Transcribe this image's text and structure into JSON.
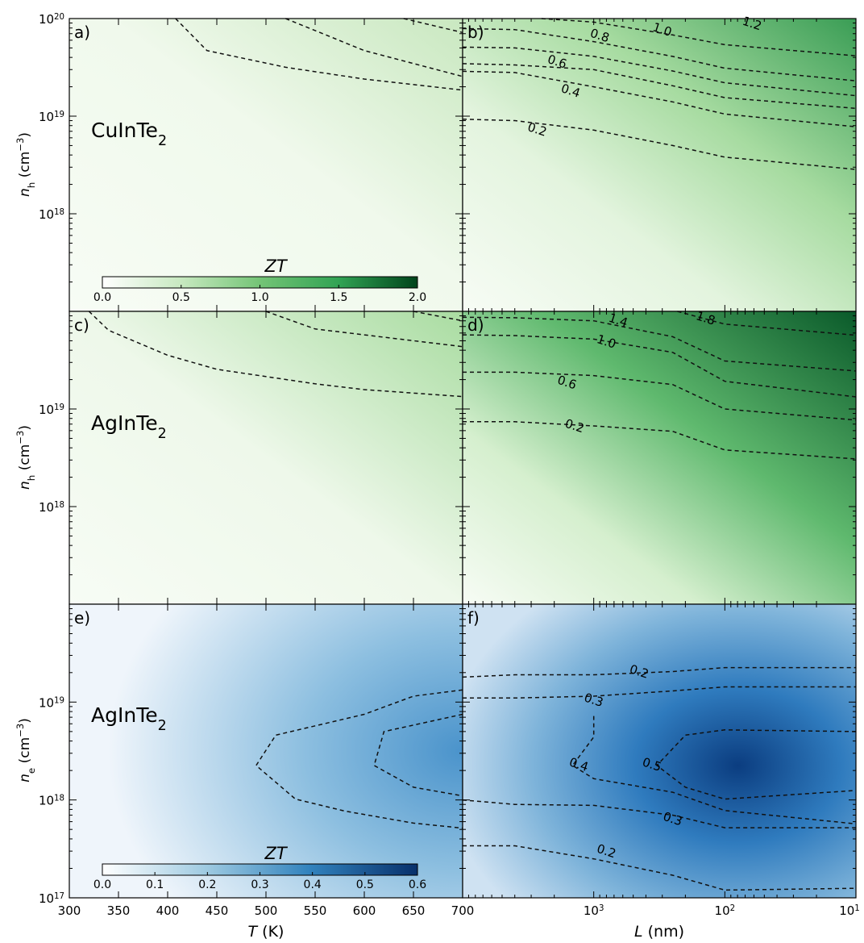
{
  "chart_data": [
    {
      "panel": "a)",
      "material": "CuInTe",
      "material_sub": "2",
      "type": "heatmap",
      "cmap": "green",
      "x_axis": "T",
      "y_axis": "n_h",
      "contours": [
        {
          "points": [
            [
              408,
              1e+20
            ],
            [
              440,
              4.7e+19
            ],
            [
              520,
              3.17e+19
            ],
            [
              600,
              2.4e+19
            ],
            [
              700,
              1.85e+19
            ]
          ]
        },
        {
          "points": [
            [
              520,
              1e+20
            ],
            [
              600,
              4.7e+19
            ],
            [
              700,
              2.55e+19
            ]
          ]
        },
        {
          "points": [
            [
              640,
              1e+20
            ],
            [
              700,
              7.2e+19
            ]
          ]
        }
      ]
    },
    {
      "panel": "b)",
      "type": "heatmap",
      "cmap": "green",
      "x_axis": "L",
      "y_axis": "n_h",
      "contours": [
        {
          "label": "0.2",
          "label_at": [
            2700,
            7.3e+18
          ],
          "points": [
            [
              10000,
              9.3e+18
            ],
            [
              4000,
              9e+18
            ],
            [
              1000,
              7.2e+18
            ],
            [
              250,
              5e+18
            ],
            [
              100,
              3.8e+18
            ],
            [
              10,
              2.85e+18
            ]
          ]
        },
        {
          "label": "0.4",
          "label_at": [
            1500,
            1.82e+19
          ],
          "points": [
            [
              10000,
              2.88e+19
            ],
            [
              4000,
              2.8e+19
            ],
            [
              1000,
              2e+19
            ],
            [
              250,
              1.4e+19
            ],
            [
              100,
              1.05e+19
            ],
            [
              10,
              7.8e+18
            ]
          ]
        },
        {
          "label": "0.6",
          "label_at": [
            1900,
            3.62e+19
          ],
          "points": [
            [
              10000,
              3.45e+19
            ],
            [
              4000,
              3.35e+19
            ],
            [
              1000,
              3e+19
            ],
            [
              250,
              2.05e+19
            ],
            [
              100,
              1.55e+19
            ],
            [
              10,
              1.2e+19
            ]
          ]
        },
        {
          "label": "0.8",
          "label_at": [
            900,
            6.7e+19
          ],
          "points": [
            [
              10000,
              5.1e+19
            ],
            [
              4000,
              5e+19
            ],
            [
              1000,
              4.1e+19
            ],
            [
              250,
              2.9e+19
            ],
            [
              100,
              2.2e+19
            ],
            [
              10,
              1.62e+19
            ]
          ]
        },
        {
          "label": "1.0",
          "label_at": [
            300,
            7.7e+19
          ],
          "points": [
            [
              10000,
              7.9e+19
            ],
            [
              4000,
              7.7e+19
            ],
            [
              1000,
              5.8e+19
            ],
            [
              250,
              4.1e+19
            ],
            [
              100,
              3.1e+19
            ],
            [
              10,
              2.3e+19
            ]
          ]
        },
        {
          "label": "1.2",
          "label_at": [
            62,
            8.9e+19
          ],
          "points": [
            [
              2500,
              1e+20
            ],
            [
              1000,
              9.2e+19
            ],
            [
              250,
              6.8e+19
            ],
            [
              100,
              5.4e+19
            ],
            [
              10,
              4.15e+19
            ]
          ]
        }
      ]
    },
    {
      "panel": "c)",
      "material": "AgInTe",
      "material_sub": "2",
      "type": "heatmap",
      "cmap": "green",
      "x_axis": "T",
      "y_axis": "n_h",
      "contours": [
        {
          "points": [
            [
              320,
              1e+20
            ],
            [
              340,
              6.4e+19
            ],
            [
              400,
              3.55e+19
            ],
            [
              450,
              2.55e+19
            ],
            [
              550,
              1.81e+19
            ],
            [
              600,
              1.58e+19
            ],
            [
              700,
              1.34e+19
            ]
          ]
        },
        {
          "points": [
            [
              500,
              1e+20
            ],
            [
              550,
              6.6e+19
            ],
            [
              700,
              4.35e+19
            ]
          ]
        },
        {
          "points": [
            [
              650,
              1e+20
            ],
            [
              700,
              8e+19
            ]
          ]
        }
      ]
    },
    {
      "panel": "d)",
      "type": "heatmap",
      "cmap": "green",
      "x_axis": "L",
      "y_axis": "n_h",
      "contours": [
        {
          "label": "0.2",
          "label_at": [
            1400,
            6.7e+18
          ],
          "points": [
            [
              10000,
              7.4e+18
            ],
            [
              4000,
              7.4e+18
            ],
            [
              1000,
              6.7e+18
            ],
            [
              250,
              5.9e+18
            ],
            [
              100,
              3.8e+18
            ],
            [
              10,
              3.08e+18
            ]
          ]
        },
        {
          "label": "0.6",
          "label_at": [
            1600,
            1.87e+19
          ],
          "points": [
            [
              10000,
              2.38e+19
            ],
            [
              4000,
              2.38e+19
            ],
            [
              1000,
              2.2e+19
            ],
            [
              250,
              1.78e+19
            ],
            [
              100,
              1e+19
            ],
            [
              10,
              7.7e+18
            ]
          ]
        },
        {
          "label": "1.0",
          "label_at": [
            800,
            4.9e+19
          ],
          "points": [
            [
              10000,
              5.75e+19
            ],
            [
              4000,
              5.65e+19
            ],
            [
              1000,
              5.2e+19
            ],
            [
              250,
              3.8e+19
            ],
            [
              100,
              1.92e+19
            ],
            [
              10,
              1.33e+19
            ]
          ]
        },
        {
          "label": "1.4",
          "label_at": [
            650,
            8.1e+19
          ],
          "points": [
            [
              10000,
              8.7e+19
            ],
            [
              4000,
              8.6e+19
            ],
            [
              1000,
              8e+19
            ],
            [
              250,
              5.5e+19
            ],
            [
              100,
              3.1e+19
            ],
            [
              10,
              2.45e+19
            ]
          ]
        },
        {
          "label": "1.8",
          "label_at": [
            140,
            8.5e+19
          ],
          "points": [
            [
              230,
              1e+20
            ],
            [
              100,
              7.4e+19
            ],
            [
              10,
              5.7e+19
            ]
          ]
        }
      ]
    },
    {
      "panel": "e)",
      "material": "AgInTe",
      "material_sub": "2",
      "type": "heatmap",
      "cmap": "blue",
      "x_axis": "T",
      "y_axis": "n_e",
      "contours": [
        {
          "points": [
            [
              700,
              1.33e+19
            ],
            [
              650,
              1.15e+19
            ],
            [
              600,
              7.5e+18
            ],
            [
              510,
              4.6e+18
            ],
            [
              490,
              2.25e+18
            ],
            [
              530,
              1.02e+18
            ],
            [
              580,
              7.7e+17
            ],
            [
              650,
              5.8e+17
            ],
            [
              700,
              5.15e+17
            ]
          ]
        },
        {
          "points": [
            [
              700,
              7.5e+18
            ],
            [
              620,
              5e+18
            ],
            [
              610,
              2.25e+18
            ],
            [
              650,
              1.35e+18
            ],
            [
              700,
              1.1e+18
            ]
          ]
        }
      ]
    },
    {
      "panel": "f)",
      "type": "heatmap",
      "cmap": "blue",
      "x_axis": "L",
      "y_axis": "n_e",
      "contours": [
        {
          "label": "0.2",
          "label_at": [
            450,
            2.05e+19
          ],
          "points": [
            [
              10000,
              1.8e+19
            ],
            [
              4000,
              1.9e+19
            ],
            [
              1000,
              1.9e+19
            ],
            [
              250,
              2.05e+19
            ],
            [
              100,
              2.25e+19
            ],
            [
              10,
              2.25e+19
            ]
          ]
        },
        {
          "label": "0.3",
          "label_at": [
            1000,
            1.05e+19
          ],
          "points": [
            [
              10000,
              1.1e+19
            ],
            [
              4000,
              1.1e+19
            ],
            [
              1000,
              1.15e+19
            ],
            [
              250,
              1.3e+19
            ],
            [
              100,
              1.43e+19
            ],
            [
              10,
              1.43e+19
            ]
          ]
        },
        {
          "label": "0.4",
          "label_at": [
            1300,
            2.3e+18
          ],
          "points": [
            [
              1000,
              7.2e+18
            ],
            [
              1000,
              4.4e+18
            ],
            [
              1450,
              2.25e+18
            ],
            [
              1000,
              1.65e+18
            ],
            [
              250,
              1.2e+18
            ],
            [
              100,
              7.8e+17
            ],
            [
              10,
              5.7e+17
            ]
          ]
        },
        {
          "label": "0.5",
          "label_at": [
            360,
            2.3e+18
          ],
          "points": [
            [
              10,
              5e+18
            ],
            [
              100,
              5.2e+18
            ],
            [
              200,
              4.6e+18
            ],
            [
              330,
              2.25e+18
            ],
            [
              200,
              1.35e+18
            ],
            [
              100,
              1.02e+18
            ],
            [
              10,
              1.25e+18
            ]
          ]
        },
        {
          "label": "0.3",
          "label_at": [
            250,
            6.4e+17
          ],
          "points": [
            [
              10000,
              1e+18
            ],
            [
              4000,
              9e+17
            ],
            [
              1000,
              8.8e+17
            ],
            [
              250,
              7e+17
            ],
            [
              100,
              5.2e+17
            ],
            [
              10,
              5.2e+17
            ]
          ]
        },
        {
          "label": "0.2",
          "label_at": [
            800,
            3e+17
          ],
          "points": [
            [
              10000,
              3.4e+17
            ],
            [
              4000,
              3.4e+17
            ],
            [
              1000,
              2.5e+17
            ],
            [
              250,
              1.7e+17
            ],
            [
              100,
              1.2e+17
            ],
            [
              10,
              1.25e+17
            ]
          ]
        }
      ]
    }
  ],
  "axes": {
    "y_h_label": "n",
    "y_h_sub": "h",
    "y_e_label": "n",
    "y_e_sub": "e",
    "y_unit": "(cm",
    "y_unit_exp": "−3",
    "y_unit_close": ")",
    "y_top_full": "20",
    "y_tick_base": "10",
    "y_ticks_h_full": [
      "19",
      "18"
    ],
    "y_ticks_h": [
      "19",
      "18"
    ],
    "y_ticks_e": [
      "19",
      "18"
    ],
    "y_bottom": "17",
    "y_range_log": [
      17,
      20
    ],
    "T_label": "T",
    "T_unit": "(K)",
    "T_ticks": [
      "300",
      "350",
      "400",
      "450",
      "500",
      "550",
      "600",
      "650",
      "700"
    ],
    "T_range": [
      300,
      700
    ],
    "L_label": "L",
    "L_unit": "(nm)",
    "L_range_log": [
      4,
      1
    ],
    "L_ticks": [
      {
        "base": "10",
        "exp": "3"
      },
      {
        "base": "10",
        "exp": "2"
      },
      {
        "base": "10",
        "exp": "1"
      }
    ],
    "L_first_tick": "700"
  },
  "colorbars": [
    {
      "cmap": "green",
      "title": "ZT",
      "ticks": [
        "0.0",
        "0.5",
        "1.0",
        "1.5",
        "2.0"
      ],
      "range": [
        0,
        2.0
      ]
    },
    {
      "cmap": "blue",
      "title": "ZT",
      "ticks": [
        "0.0",
        "0.1",
        "0.2",
        "0.3",
        "0.4",
        "0.5",
        "0.6"
      ],
      "range": [
        0,
        0.6
      ]
    }
  ],
  "colors": {
    "green_light": "#f4faf1",
    "green_mid": "#74c476",
    "green_dark": "#00441b",
    "blue_light": "#f7fbff",
    "blue_mid": "#4292c6",
    "blue_dark": "#08306b"
  }
}
